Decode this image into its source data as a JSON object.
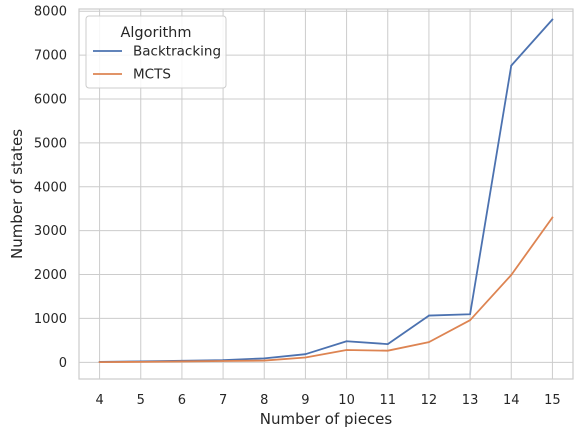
{
  "chart_data": {
    "type": "line",
    "title": "",
    "xlabel": "Number of pieces",
    "ylabel": "Number of states",
    "x": [
      4,
      5,
      6,
      7,
      8,
      9,
      10,
      11,
      12,
      13,
      14,
      15
    ],
    "xticks": [
      "4",
      "5",
      "6",
      "7",
      "8",
      "9",
      "10",
      "11",
      "12",
      "13",
      "14",
      "15"
    ],
    "yticks": [
      "0",
      "1000",
      "2000",
      "3000",
      "4000",
      "5000",
      "6000",
      "7000",
      "8000"
    ],
    "ylim": [
      -380,
      8050
    ],
    "grid": true,
    "legend": {
      "title": "Algorithm",
      "placement": "top-left"
    },
    "series": [
      {
        "name": "Backtracking",
        "color": "#4c72b0",
        "values": [
          10,
          20,
          35,
          50,
          90,
          185,
          480,
          415,
          1065,
          1095,
          6760,
          7810
        ]
      },
      {
        "name": "MCTS",
        "color": "#dd8452",
        "values": [
          5,
          10,
          20,
          30,
          40,
          110,
          280,
          265,
          460,
          960,
          1990,
          3300
        ]
      }
    ]
  }
}
